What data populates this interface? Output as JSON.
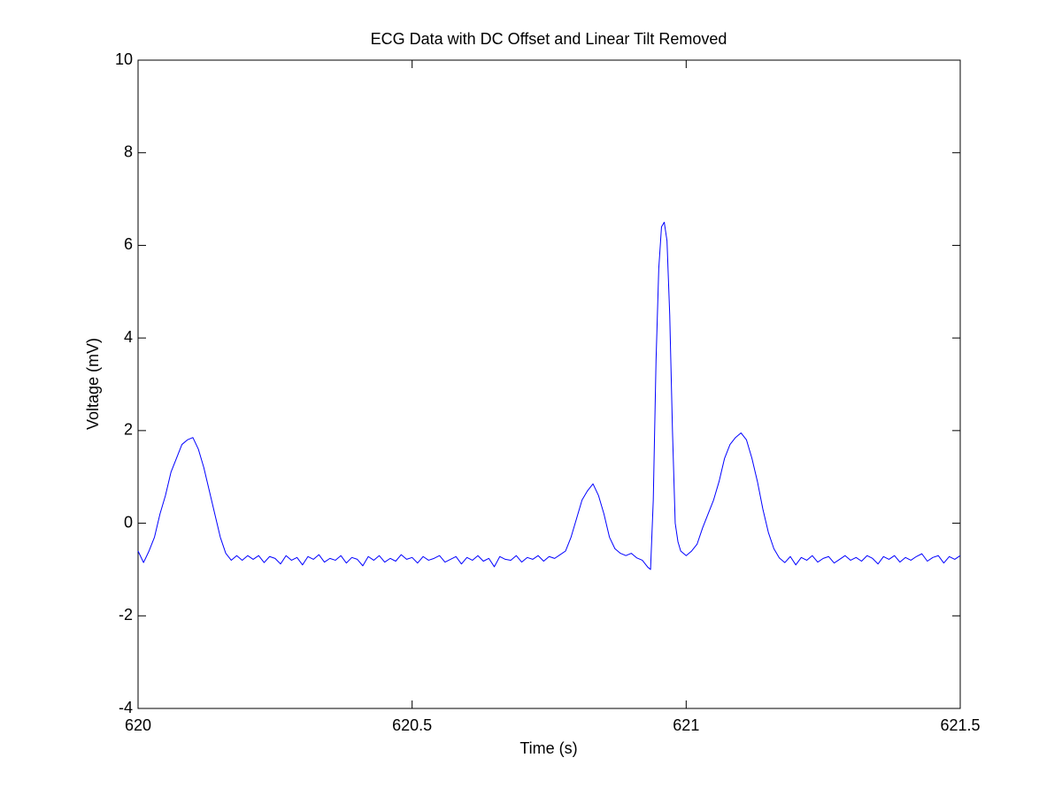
{
  "chart_data": {
    "type": "line",
    "title": "ECG Data with DC Offset and Linear Tilt Removed",
    "x_label": "Time (s)",
    "y_label": "Voltage (mV)",
    "xlim": [
      620,
      621.5
    ],
    "xticks": [
      620,
      620.5,
      621,
      621.5
    ],
    "ylim": [
      -4,
      10
    ],
    "yticks": [
      -4,
      -2,
      0,
      2,
      4,
      6,
      8,
      10
    ],
    "grid": false,
    "x": [
      620.0,
      620.01,
      620.02,
      620.03,
      620.04,
      620.05,
      620.06,
      620.07,
      620.08,
      620.09,
      620.1,
      620.11,
      620.12,
      620.13,
      620.14,
      620.15,
      620.16,
      620.17,
      620.18,
      620.19,
      620.2,
      620.21,
      620.22,
      620.23,
      620.24,
      620.25,
      620.26,
      620.27,
      620.28,
      620.29,
      620.3,
      620.31,
      620.32,
      620.33,
      620.34,
      620.35,
      620.36,
      620.37,
      620.38,
      620.39,
      620.4,
      620.41,
      620.42,
      620.43,
      620.44,
      620.45,
      620.46,
      620.47,
      620.48,
      620.49,
      620.5,
      620.51,
      620.52,
      620.53,
      620.54,
      620.55,
      620.56,
      620.57,
      620.58,
      620.59,
      620.6,
      620.61,
      620.62,
      620.63,
      620.64,
      620.65,
      620.66,
      620.67,
      620.68,
      620.69,
      620.7,
      620.71,
      620.72,
      620.73,
      620.74,
      620.75,
      620.76,
      620.77,
      620.78,
      620.79,
      620.8,
      620.81,
      620.82,
      620.83,
      620.84,
      620.85,
      620.86,
      620.87,
      620.88,
      620.89,
      620.9,
      620.91,
      620.92,
      620.93,
      620.935,
      620.94,
      620.945,
      620.95,
      620.955,
      620.96,
      620.965,
      620.97,
      620.975,
      620.98,
      620.985,
      620.99,
      621.0,
      621.01,
      621.02,
      621.03,
      621.04,
      621.05,
      621.06,
      621.07,
      621.08,
      621.09,
      621.1,
      621.11,
      621.12,
      621.13,
      621.14,
      621.15,
      621.16,
      621.17,
      621.18,
      621.19,
      621.2,
      621.21,
      621.22,
      621.23,
      621.24,
      621.25,
      621.26,
      621.27,
      621.28,
      621.29,
      621.3,
      621.31,
      621.32,
      621.33,
      621.34,
      621.35,
      621.36,
      621.37,
      621.38,
      621.39,
      621.4,
      621.41,
      621.42,
      621.43,
      621.44,
      621.45,
      621.46,
      621.47,
      621.48,
      621.49,
      621.5
    ],
    "series": [
      {
        "name": "ECG",
        "color": "#0000ff",
        "values": [
          -0.6,
          -0.85,
          -0.6,
          -0.3,
          0.2,
          0.6,
          1.1,
          1.4,
          1.7,
          1.8,
          1.85,
          1.6,
          1.2,
          0.7,
          0.2,
          -0.3,
          -0.65,
          -0.8,
          -0.7,
          -0.8,
          -0.7,
          -0.78,
          -0.7,
          -0.85,
          -0.72,
          -0.76,
          -0.88,
          -0.7,
          -0.8,
          -0.74,
          -0.9,
          -0.72,
          -0.78,
          -0.68,
          -0.84,
          -0.76,
          -0.8,
          -0.7,
          -0.86,
          -0.74,
          -0.78,
          -0.92,
          -0.72,
          -0.8,
          -0.7,
          -0.84,
          -0.76,
          -0.82,
          -0.68,
          -0.78,
          -0.74,
          -0.86,
          -0.72,
          -0.8,
          -0.76,
          -0.7,
          -0.84,
          -0.78,
          -0.72,
          -0.88,
          -0.74,
          -0.8,
          -0.7,
          -0.82,
          -0.76,
          -0.94,
          -0.72,
          -0.78,
          -0.8,
          -0.7,
          -0.84,
          -0.74,
          -0.78,
          -0.7,
          -0.82,
          -0.72,
          -0.76,
          -0.68,
          -0.6,
          -0.3,
          0.1,
          0.5,
          0.7,
          0.85,
          0.6,
          0.2,
          -0.3,
          -0.55,
          -0.65,
          -0.7,
          -0.65,
          -0.75,
          -0.8,
          -0.95,
          -1.0,
          0.5,
          3.5,
          5.5,
          6.4,
          6.5,
          6.1,
          4.5,
          2.0,
          0.0,
          -0.4,
          -0.6,
          -0.7,
          -0.6,
          -0.45,
          -0.1,
          0.2,
          0.5,
          0.9,
          1.4,
          1.7,
          1.85,
          1.95,
          1.8,
          1.4,
          0.9,
          0.3,
          -0.2,
          -0.55,
          -0.75,
          -0.85,
          -0.72,
          -0.9,
          -0.74,
          -0.8,
          -0.7,
          -0.84,
          -0.76,
          -0.72,
          -0.86,
          -0.78,
          -0.7,
          -0.8,
          -0.74,
          -0.82,
          -0.7,
          -0.76,
          -0.88,
          -0.72,
          -0.78,
          -0.7,
          -0.84,
          -0.74,
          -0.8,
          -0.72,
          -0.66,
          -0.82,
          -0.74,
          -0.7,
          -0.86,
          -0.72,
          -0.78,
          -0.7
        ]
      }
    ]
  }
}
